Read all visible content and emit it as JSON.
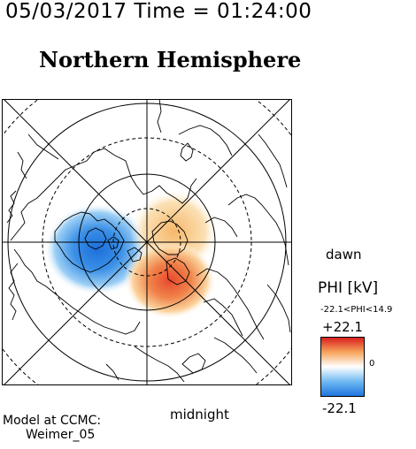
{
  "header": {
    "timestamp": "05/03/2017 Time = 01:24:00",
    "hemisphere": "Northern Hemisphere"
  },
  "map": {
    "labels": {
      "noon": "",
      "dawn": "dawn",
      "midnight": "midnight"
    }
  },
  "legend": {
    "title": "PHI [kV]",
    "range_text": "-22.1<PHI<14.9",
    "max_label": "+22.1",
    "min_label": "-22.1",
    "zero_label": "0",
    "colors": {
      "top": "#d81c1c",
      "upper": "#f6a35a",
      "mid": "#ffffff",
      "lower": "#6fb9f2",
      "bottom": "#1c73de"
    }
  },
  "footer": {
    "model_line1": "Model at CCMC:",
    "model_line2": "Weimer_05"
  }
}
